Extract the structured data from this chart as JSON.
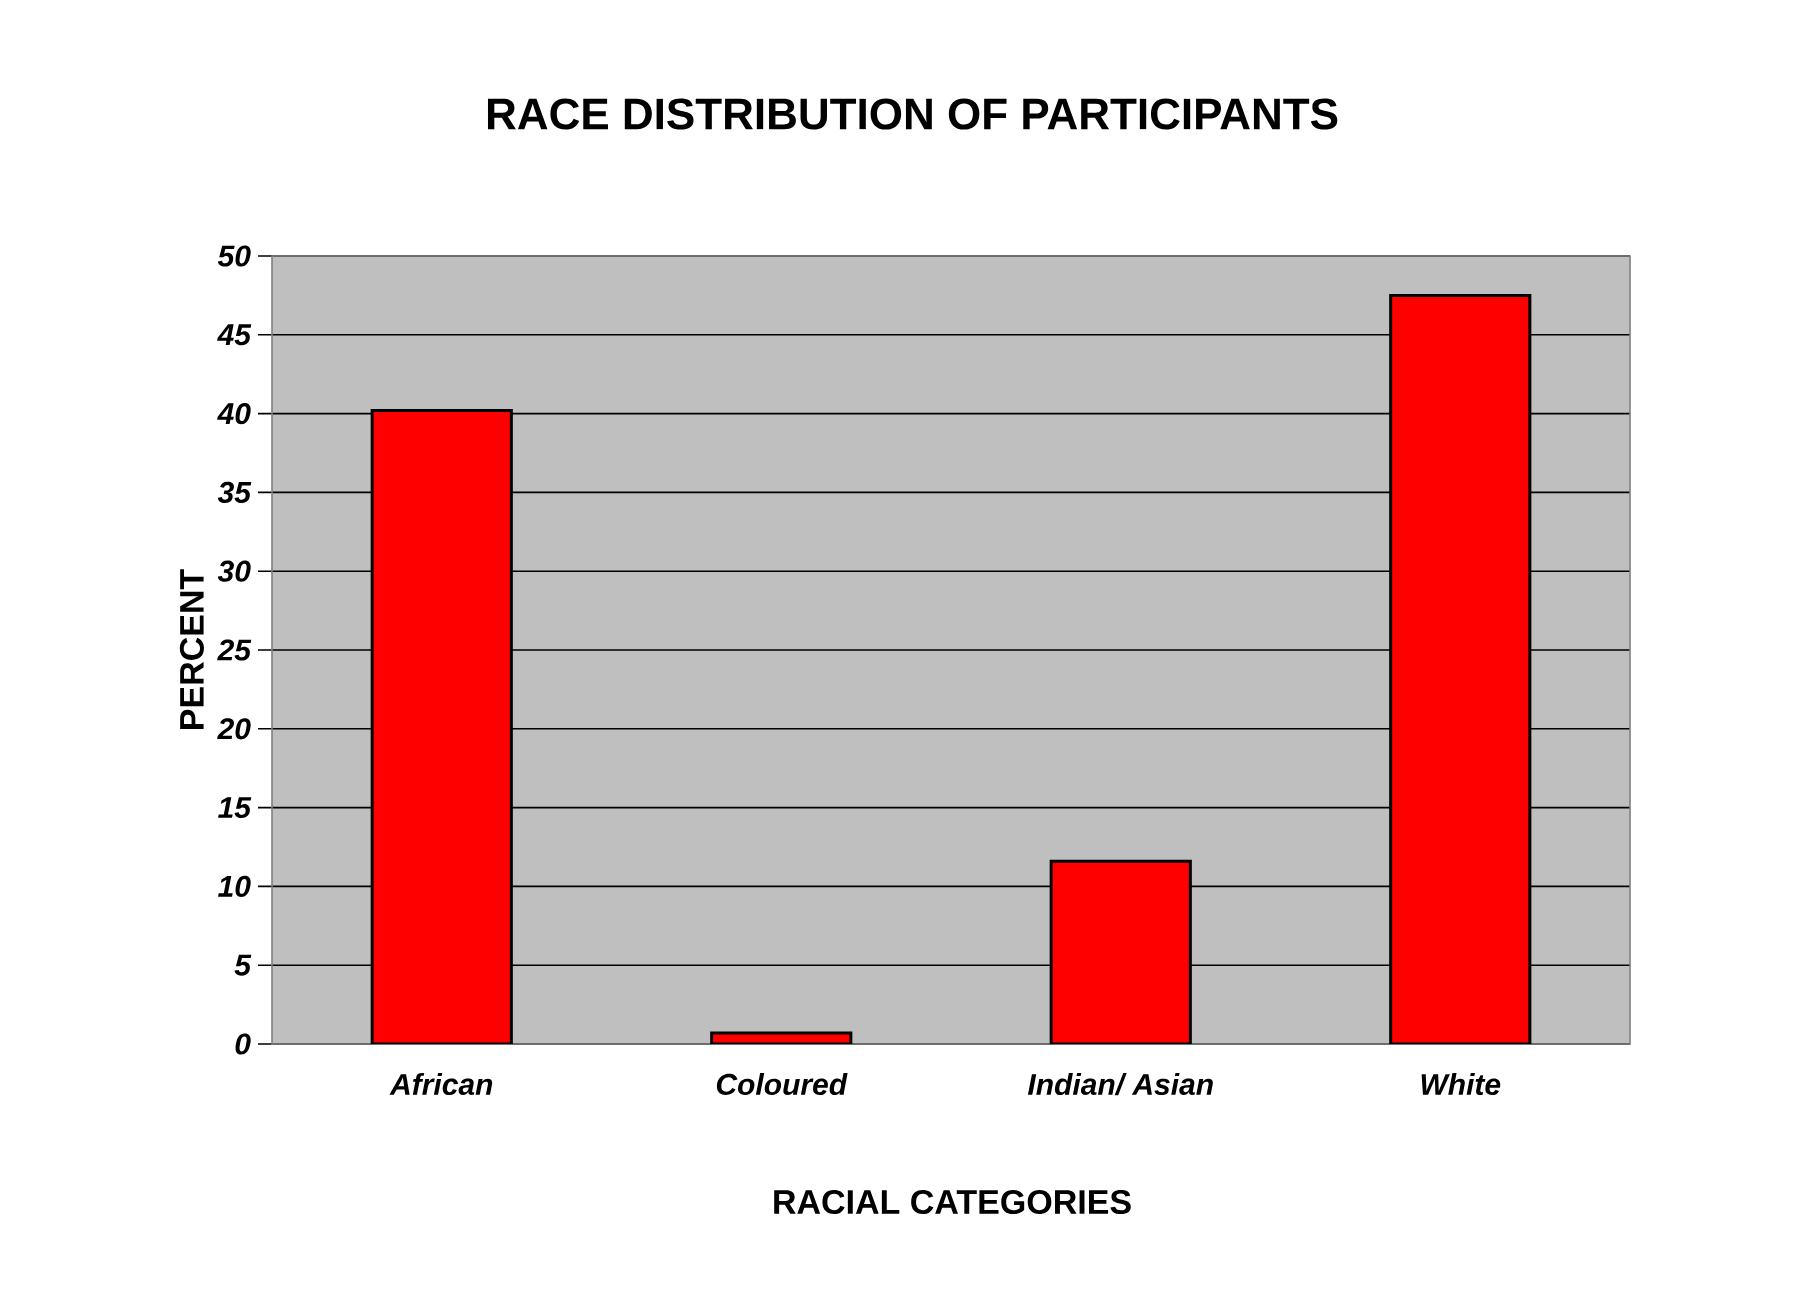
{
  "chart_data": {
    "type": "bar",
    "title": "RACE DISTRIBUTION OF PARTICIPANTS",
    "xlabel": "RACIAL CATEGORIES",
    "ylabel": "PERCENT",
    "categories": [
      "African",
      "Coloured",
      "Indian/  Asian",
      "White"
    ],
    "values": [
      40.2,
      0.7,
      11.6,
      47.5
    ],
    "color": "#ff0000",
    "ylim": [
      0,
      50
    ],
    "yticks": [
      0,
      5,
      10,
      15,
      20,
      25,
      30,
      35,
      40,
      45,
      50
    ],
    "grid": "y"
  }
}
